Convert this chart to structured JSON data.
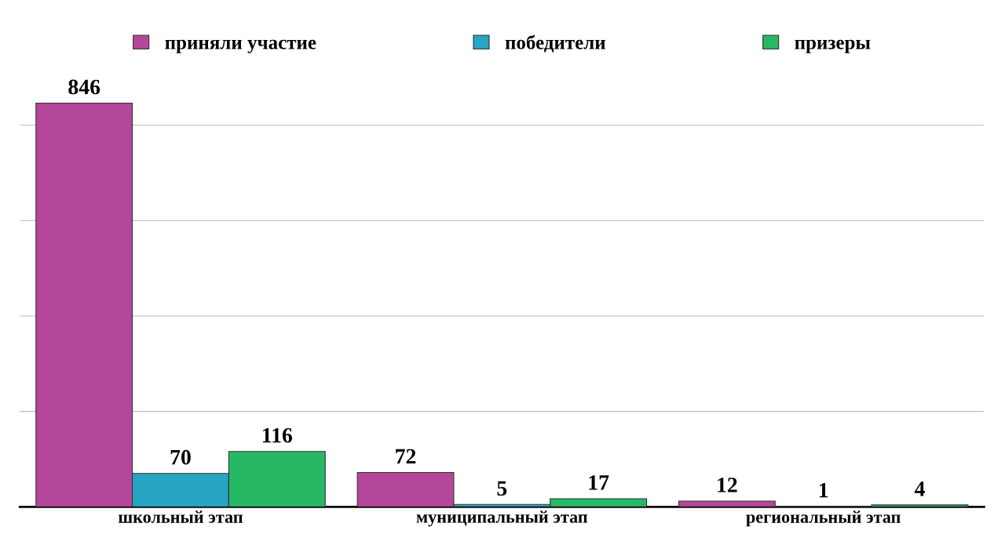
{
  "chart_data": {
    "type": "bar",
    "categories": [
      "школьный этап",
      "муниципальный этап",
      "региональный этап"
    ],
    "series": [
      {
        "name": "приняли участие",
        "color": "#b5479a",
        "values": [
          846,
          72,
          12
        ]
      },
      {
        "name": "победители",
        "color": "#27a5c4",
        "values": [
          70,
          5,
          1
        ]
      },
      {
        "name": "призеры",
        "color": "#27b865",
        "values": [
          116,
          17,
          4
        ]
      }
    ],
    "data_labels": true,
    "grid": "y",
    "legend": "top",
    "tick_labels": "x"
  }
}
